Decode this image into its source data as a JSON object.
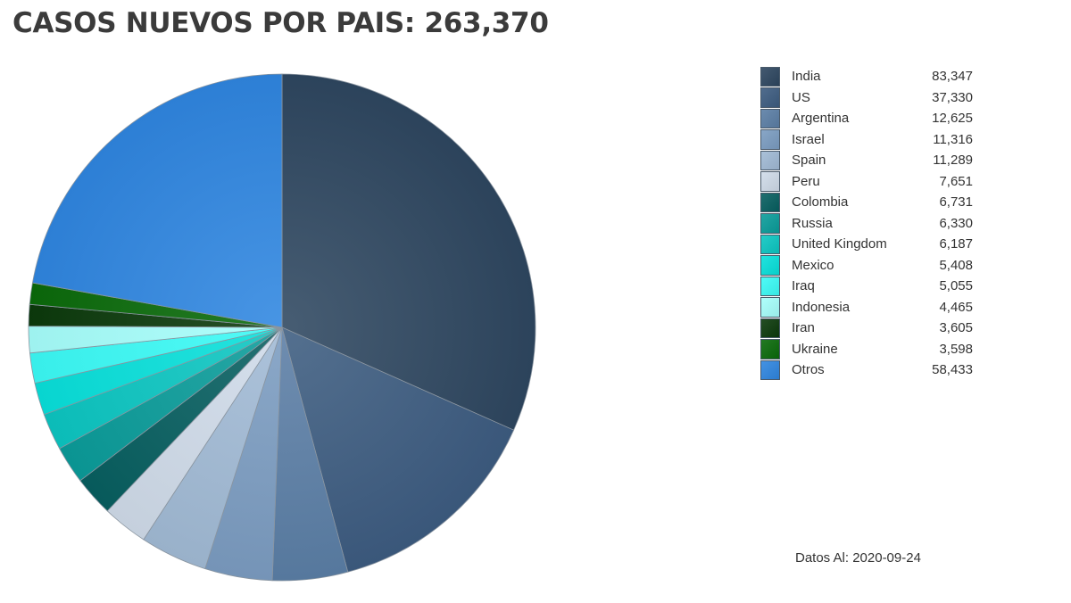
{
  "title": "CASOS NUEVOS POR PAIS: 263,370",
  "footer": "Datos Al: 2020-09-24",
  "chart_data": {
    "type": "pie",
    "title": "CASOS NUEVOS POR PAIS: 263,370",
    "slices": [
      {
        "label": "India",
        "value": 83347,
        "display": "83,347",
        "color": "#2e4760"
      },
      {
        "label": "US",
        "value": 37330,
        "display": "37,330",
        "color": "#3d5c80"
      },
      {
        "label": "Argentina",
        "value": 12625,
        "display": "12,625",
        "color": "#5b7ea5"
      },
      {
        "label": "Israel",
        "value": 11316,
        "display": "11,316",
        "color": "#7b9cc1"
      },
      {
        "label": "Spain",
        "value": 11289,
        "display": "11,289",
        "color": "#a1bad5"
      },
      {
        "label": "Peru",
        "value": 7651,
        "display": "7,651",
        "color": "#cfdbe9"
      },
      {
        "label": "Colombia",
        "value": 6731,
        "display": "6,731",
        "color": "#075f60"
      },
      {
        "label": "Russia",
        "value": 6330,
        "display": "6,330",
        "color": "#0a9c9a"
      },
      {
        "label": "United Kingdom",
        "value": 6187,
        "display": "6,187",
        "color": "#0cc6c2"
      },
      {
        "label": "Mexico",
        "value": 5408,
        "display": "5,408",
        "color": "#08e0db"
      },
      {
        "label": "Iraq",
        "value": 5055,
        "display": "5,055",
        "color": "#3bfbf6"
      },
      {
        "label": "Indonesia",
        "value": 4465,
        "display": "4,465",
        "color": "#a6fffc"
      },
      {
        "label": "Iran",
        "value": 3605,
        "display": "3,605",
        "color": "#0c3a0c"
      },
      {
        "label": "Ukraine",
        "value": 3598,
        "display": "3,598",
        "color": "#0a6a0a"
      },
      {
        "label": "Otros",
        "value": 58433,
        "display": "58,433",
        "color": "#2f86e0"
      }
    ],
    "legend_position": "right",
    "start_angle": "top",
    "direction": "clockwise"
  }
}
